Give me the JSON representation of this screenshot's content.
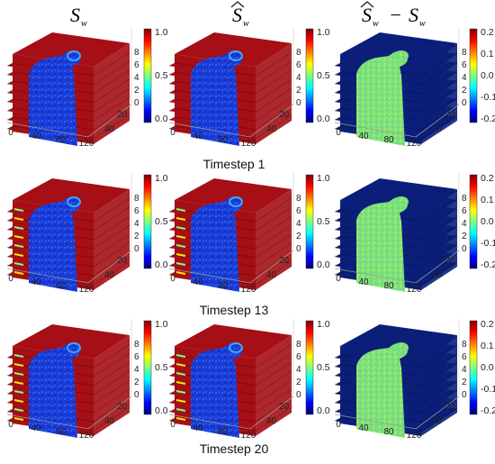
{
  "columns": [
    {
      "symbol": "S",
      "subscript": "w",
      "hat": false
    },
    {
      "symbol": "S",
      "subscript": "w",
      "hat": true
    },
    {
      "symbol": "S",
      "subscript": "w",
      "hat": true,
      "minus": "−",
      "symbol2": "S",
      "subscript2": "w"
    }
  ],
  "timesteps": [
    "Timestep 1",
    "Timestep 13",
    "Timestep 20"
  ],
  "axes": {
    "x_ticks": [
      "0",
      "40",
      "80",
      "120"
    ],
    "y_ticks": [
      "20",
      "40"
    ],
    "z_ticks": [
      "0",
      "2",
      "4",
      "6",
      "8"
    ]
  },
  "colorbars": {
    "saturation": {
      "ticks": [
        "1.0",
        "0.5",
        "0.0"
      ],
      "range": [
        0.0,
        1.0
      ]
    },
    "difference": {
      "ticks": [
        "0.2",
        "0.1",
        "0.0",
        "-0.1",
        "-0.2"
      ],
      "range": [
        -0.2,
        0.2
      ]
    }
  },
  "colormap": "jet",
  "colors": {
    "red": "#a50f15",
    "dark_blue": "#0a1a9c",
    "navy": "#0b1f7a",
    "green": "#7ee27e",
    "cyan": "#3fa9f5"
  }
}
